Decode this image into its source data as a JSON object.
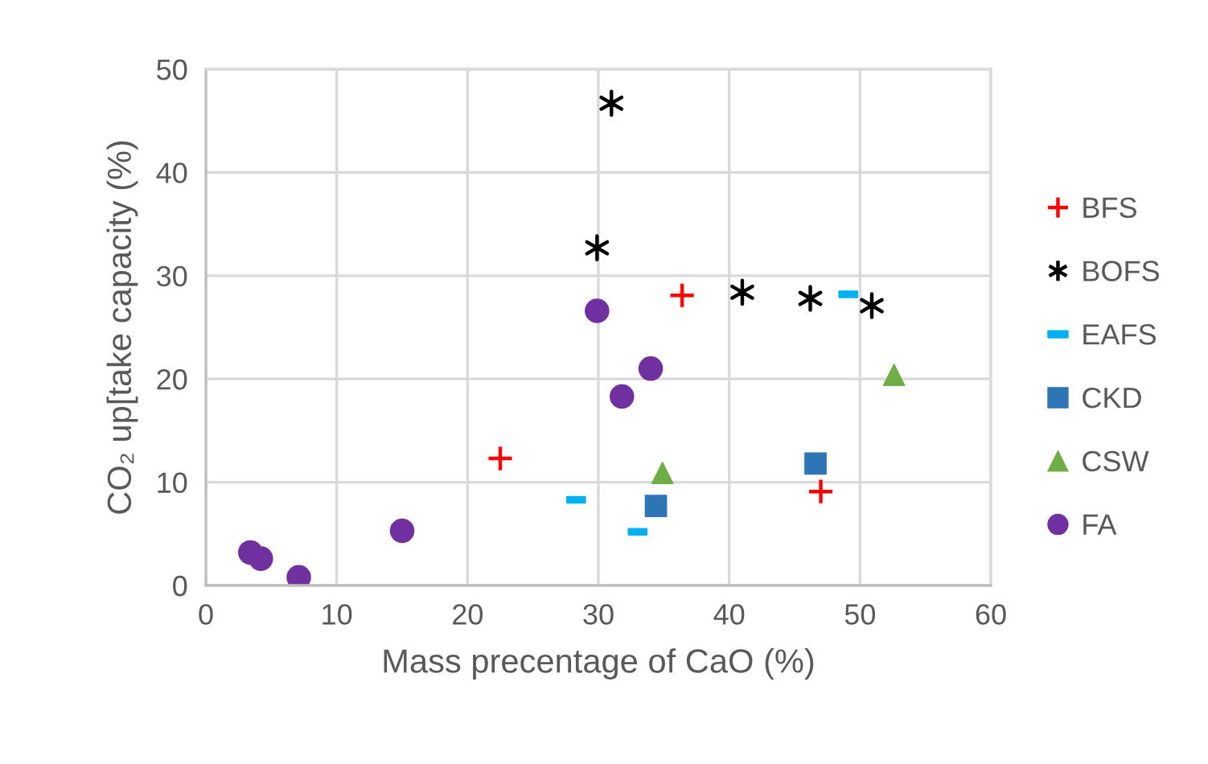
{
  "chart_data": {
    "type": "scatter",
    "xlabel": "Mass precentage of CaO (%)",
    "ylabel": "CO₂ up[take capacity (%)",
    "xlim": [
      0,
      60
    ],
    "xticks": [
      0,
      10,
      20,
      30,
      40,
      50,
      60
    ],
    "ylim": [
      0,
      50
    ],
    "yticks": [
      0,
      10,
      20,
      30,
      40,
      50
    ],
    "grid": true,
    "legend": "right",
    "series": [
      {
        "name": "BFS",
        "color": "#ff0000",
        "marker": "plus",
        "x": [
          22.5,
          36.4,
          47.0
        ],
        "values": [
          12.3,
          28.1,
          9.1
        ]
      },
      {
        "name": "BOFS",
        "color": "#000000",
        "marker": "cross",
        "x": [
          31.0,
          29.9,
          41.0,
          46.2,
          50.9
        ],
        "values": [
          46.7,
          32.7,
          28.4,
          27.8,
          27.1
        ]
      },
      {
        "name": "EAFS",
        "color": "#00b0f0",
        "x": [
          49.1,
          28.3,
          33.0
        ],
        "values": [
          28.2,
          8.3,
          5.2
        ]
      },
      {
        "name": "CKD",
        "color": "#2e75b6",
        "marker": "square",
        "x": [
          34.4,
          46.6
        ],
        "values": [
          7.7,
          11.8
        ]
      },
      {
        "name": "CSW",
        "color": "#70ad47",
        "marker": "triangle",
        "x": [
          34.9,
          52.6
        ],
        "values": [
          10.9,
          20.4
        ]
      },
      {
        "name": "FA",
        "color": "#7030a0",
        "marker": "circle",
        "x": [
          29.9,
          34.0,
          31.8,
          15.0,
          3.4,
          4.2,
          7.1
        ],
        "values": [
          26.6,
          21.0,
          18.3,
          5.3,
          3.2,
          2.6,
          0.8
        ]
      }
    ]
  }
}
